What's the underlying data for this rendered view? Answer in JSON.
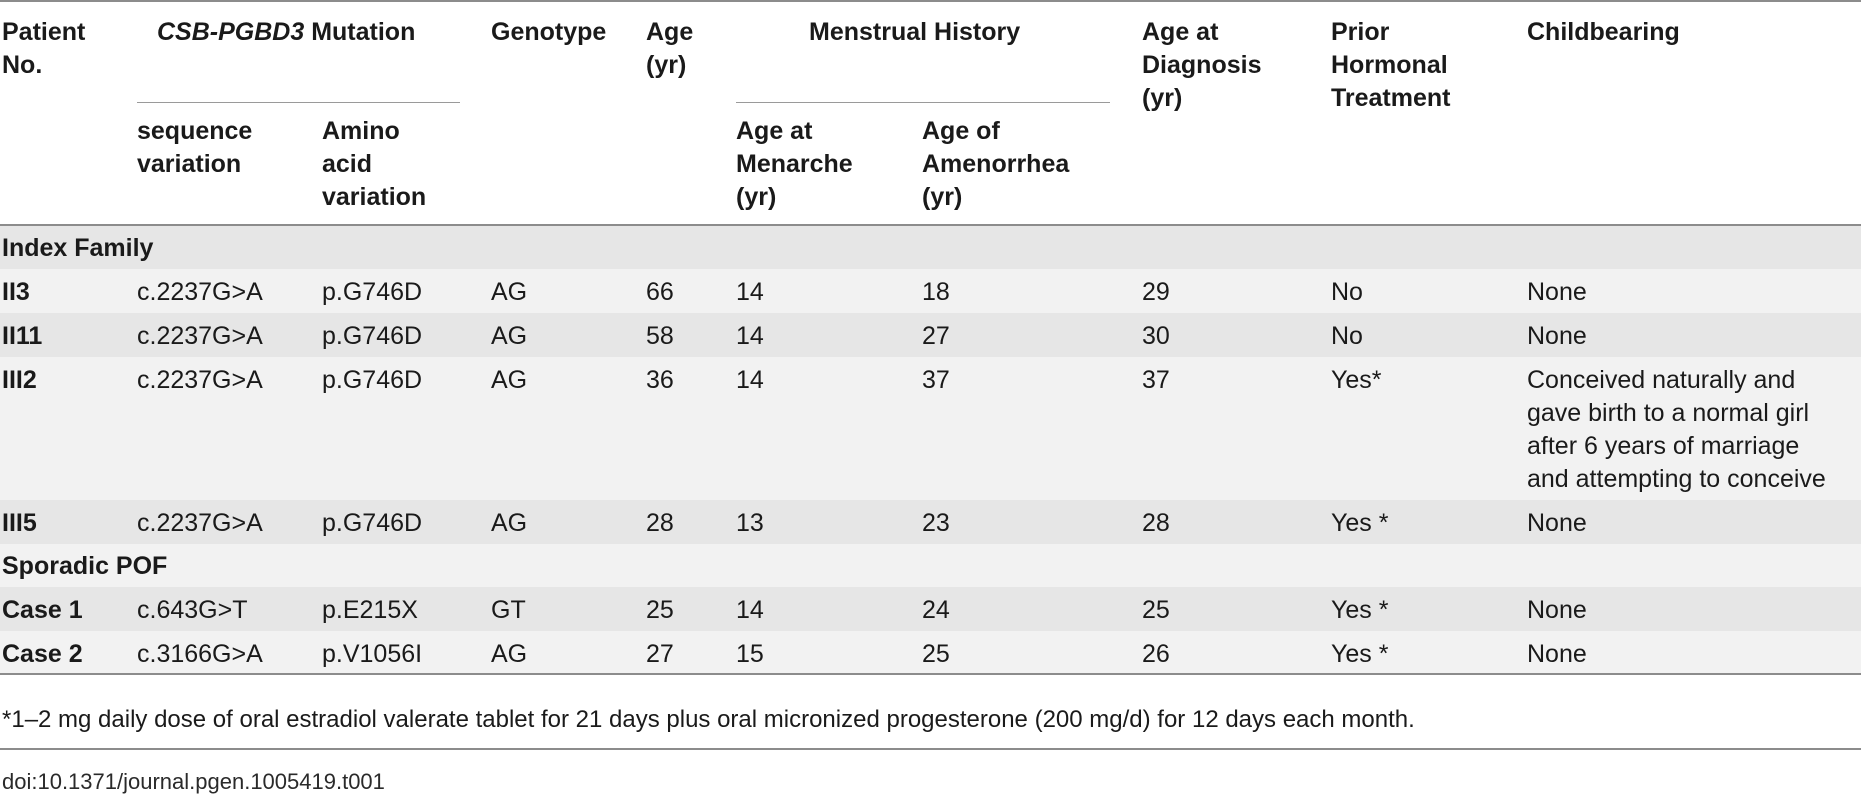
{
  "header": {
    "patient_no": "Patient\nNo.",
    "mutation_gene": "CSB-PGBD3",
    "mutation_word": " Mutation",
    "genotype": "Genotype",
    "age": "Age\n(yr)",
    "menstrual_history": "Menstrual History",
    "age_at_diagnosis": "Age at\nDiagnosis\n(yr)",
    "prior_hormonal": "Prior\nHormonal\nTreatment",
    "childbearing": "Childbearing",
    "sequence_variation": "sequence\nvariation",
    "amino_acid_variation": "Amino\nacid\nvariation",
    "age_at_menarche": "Age at\nMenarche\n(yr)",
    "age_of_amenorrhea": "Age of\nAmenorrhea\n(yr)"
  },
  "sections": {
    "index_family": "Index Family",
    "sporadic_pof": "Sporadic POF"
  },
  "rows": [
    {
      "patient": "II3",
      "seq": "c.2237G>A",
      "aa": "p.G746D",
      "genotype": "AG",
      "age": "66",
      "menarche": "14",
      "amenorrhea": "18",
      "diagnosis": "29",
      "hormonal": "No",
      "childbearing": "None"
    },
    {
      "patient": "II11",
      "seq": "c.2237G>A",
      "aa": "p.G746D",
      "genotype": "AG",
      "age": "58",
      "menarche": "14",
      "amenorrhea": "27",
      "diagnosis": "30",
      "hormonal": "No",
      "childbearing": "None"
    },
    {
      "patient": "III2",
      "seq": "c.2237G>A",
      "aa": "p.G746D",
      "genotype": "AG",
      "age": "36",
      "menarche": "14",
      "amenorrhea": "37",
      "diagnosis": "37",
      "hormonal": "Yes*",
      "childbearing": "Conceived naturally and\ngave birth to a normal girl\nafter 6 years of marriage\nand attempting to conceive"
    },
    {
      "patient": "III5",
      "seq": "c.2237G>A",
      "aa": "p.G746D",
      "genotype": "AG",
      "age": "28",
      "menarche": "13",
      "amenorrhea": "23",
      "diagnosis": "28",
      "hormonal": "Yes *",
      "childbearing": "None"
    },
    {
      "patient": "Case 1",
      "seq": "c.643G>T",
      "aa": "p.E215X",
      "genotype": "GT",
      "age": "25",
      "menarche": "14",
      "amenorrhea": "24",
      "diagnosis": "25",
      "hormonal": "Yes *",
      "childbearing": "None"
    },
    {
      "patient": "Case 2",
      "seq": "c.3166G>A",
      "aa": "p.V1056I",
      "genotype": "AG",
      "age": "27",
      "menarche": "15",
      "amenorrhea": "25",
      "diagnosis": "26",
      "hormonal": "Yes *",
      "childbearing": "None"
    }
  ],
  "footnote": "*1–2 mg daily dose of oral estradiol valerate tablet for 21 days plus oral micronized progesterone (200 mg/d) for 12 days each month.",
  "doi": "doi:10.1371/journal.pgen.1005419.t001",
  "colors": {
    "band_dark": "#e6e6e6",
    "band_light": "#f2f2f2",
    "rule": "#8c8c8c"
  }
}
